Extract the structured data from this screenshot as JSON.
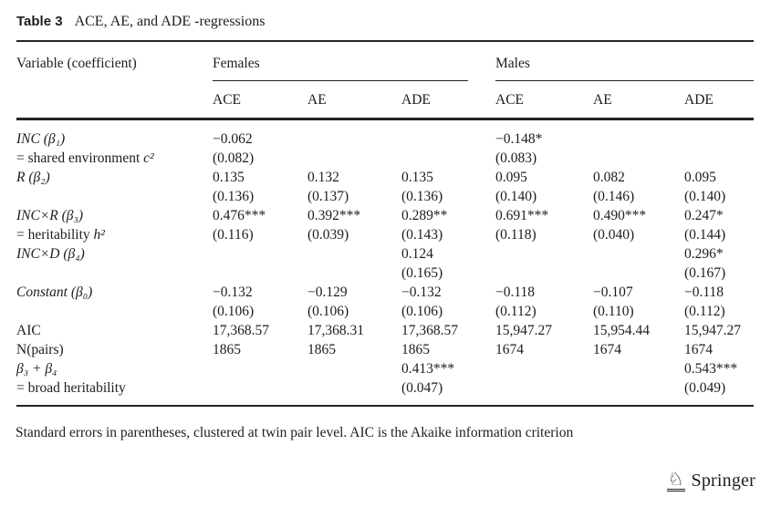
{
  "page": {
    "title_label": "Table 3",
    "title_caption": "ACE, AE, and ADE -regressions",
    "footnote": "Standard errors in parentheses, clustered at twin pair level. AIC is the Akaike information criterion",
    "publisher": "Springer",
    "logo_glyph": "♘",
    "colors": {
      "text": "#1d1d1d",
      "rule": "#232323",
      "background": "#ffffff"
    }
  },
  "table": {
    "corner_header": "Variable (coefficient)",
    "groups": [
      {
        "label": "Females"
      },
      {
        "label": "Males"
      }
    ],
    "sub_headers": [
      "ACE",
      "AE",
      "ADE",
      "ACE",
      "AE",
      "ADE"
    ],
    "rows": [
      {
        "label": "",
        "label_italic": "INC (β₁)",
        "cells": [
          "−0.062",
          "",
          "",
          "−0.148*",
          "",
          ""
        ]
      },
      {
        "label": "= shared environment ",
        "label_italic": "c²",
        "cells": [
          "(0.082)",
          "",
          "",
          "(0.083)",
          "",
          ""
        ]
      },
      {
        "label": "",
        "label_italic": "R (β₂)",
        "cells": [
          "0.135",
          "0.132",
          "0.135",
          "0.095",
          "0.082",
          "0.095"
        ]
      },
      {
        "label": "",
        "label_italic": "",
        "cells": [
          "(0.136)",
          "(0.137)",
          "(0.136)",
          "(0.140)",
          "(0.146)",
          "(0.140)"
        ]
      },
      {
        "label": "",
        "label_italic": "INC×R (β₃)",
        "cells": [
          "0.476***",
          "0.392***",
          "0.289**",
          "0.691***",
          "0.490***",
          "0.247*"
        ]
      },
      {
        "label": "= heritability ",
        "label_italic": "h²",
        "cells": [
          "(0.116)",
          "(0.039)",
          "(0.143)",
          "(0.118)",
          "(0.040)",
          "(0.144)"
        ]
      },
      {
        "label": "",
        "label_italic": "INC×D (β₄)",
        "cells": [
          "",
          "",
          "0.124",
          "",
          "",
          "0.296*"
        ]
      },
      {
        "label": "",
        "label_italic": "",
        "cells": [
          "",
          "",
          "(0.165)",
          "",
          "",
          "(0.167)"
        ]
      },
      {
        "label": "",
        "label_italic": "Constant (β₀)",
        "cells": [
          "−0.132",
          "−0.129",
          "−0.132",
          "−0.118",
          "−0.107",
          "−0.118"
        ]
      },
      {
        "label": "",
        "label_italic": "",
        "cells": [
          "(0.106)",
          "(0.106)",
          "(0.106)",
          "(0.112)",
          "(0.110)",
          "(0.112)"
        ]
      },
      {
        "label": "AIC",
        "label_italic": "",
        "cells": [
          "17,368.57",
          "17,368.31",
          "17,368.57",
          "15,947.27",
          "15,954.44",
          "15,947.27"
        ]
      },
      {
        "label": "N(pairs)",
        "label_italic": "",
        "cells": [
          "1865",
          "1865",
          "1865",
          "1674",
          "1674",
          "1674"
        ]
      },
      {
        "label": "",
        "label_italic": "β₃ + β₄",
        "cells": [
          "",
          "",
          "0.413***",
          "",
          "",
          "0.543***"
        ]
      },
      {
        "label": "= broad heritability",
        "label_italic": "",
        "cells": [
          "",
          "",
          "(0.047)",
          "",
          "",
          "(0.049)"
        ]
      }
    ]
  }
}
